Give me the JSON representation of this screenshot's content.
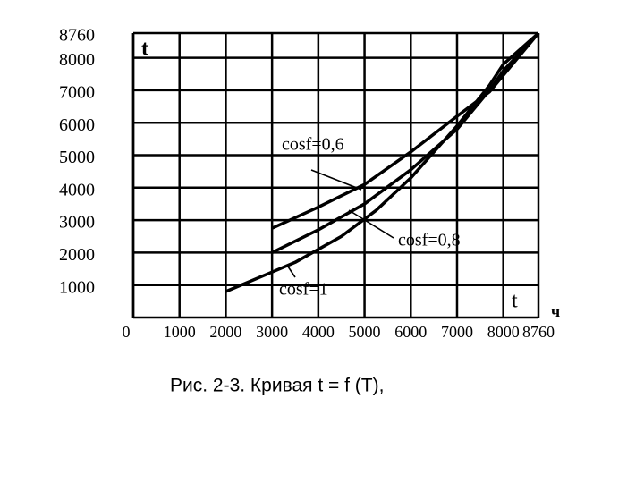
{
  "chart_data": {
    "type": "line",
    "caption": "Рис. 2-3. Кривая t = f (T),",
    "y_label": "t",
    "x_label": "t",
    "x_unit": "ч",
    "xlim": [
      0,
      8760
    ],
    "ylim": [
      0,
      8760
    ],
    "xticks": [
      0,
      1000,
      2000,
      3000,
      4000,
      5000,
      6000,
      7000,
      8000,
      8760
    ],
    "yticks": [
      1000,
      2000,
      3000,
      4000,
      5000,
      6000,
      7000,
      8000,
      8760
    ],
    "grid": true,
    "series": [
      {
        "name": "cosf=0,6",
        "color": "#000000",
        "x": [
          3000,
          4000,
          5000,
          6000,
          7000,
          7700,
          8760
        ],
        "values": [
          2750,
          3400,
          4100,
          5100,
          6200,
          6950,
          8760
        ]
      },
      {
        "name": "cosf=0,8",
        "color": "#000000",
        "x": [
          3000,
          4000,
          5000,
          6000,
          7000,
          7700,
          8000,
          8760
        ],
        "values": [
          2000,
          2700,
          3500,
          4550,
          5800,
          7000,
          7600,
          8760
        ]
      },
      {
        "name": "cosf=1",
        "color": "#000000",
        "x": [
          2000,
          3000,
          3500,
          4500,
          5250,
          6000,
          7000,
          7700,
          8000,
          8760
        ],
        "values": [
          800,
          1400,
          1700,
          2500,
          3300,
          4300,
          5900,
          7150,
          7800,
          8760
        ]
      }
    ]
  }
}
